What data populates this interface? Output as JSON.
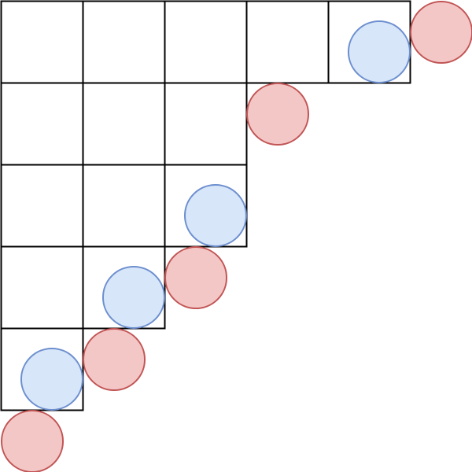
{
  "diagram": {
    "type": "staircase-grid-with-circles",
    "grid": {
      "rows": 5,
      "cols": 5,
      "row_lengths": [
        5,
        3,
        3,
        2,
        1
      ],
      "line_color": "#000000"
    },
    "colors": {
      "red_fill": "#f4c7c7",
      "red_stroke": "#c25555",
      "blue_fill": "#d7e6f8",
      "blue_stroke": "#6d8fcf"
    },
    "circles": [
      {
        "color": "red",
        "col": 0.38,
        "row": 5.38
      },
      {
        "color": "blue",
        "col": 0.62,
        "row": 4.62
      },
      {
        "color": "red",
        "col": 1.38,
        "row": 4.38
      },
      {
        "color": "blue",
        "col": 1.62,
        "row": 3.62
      },
      {
        "color": "red",
        "col": 2.38,
        "row": 3.38
      },
      {
        "color": "blue",
        "col": 2.62,
        "row": 2.62
      },
      {
        "color": "red",
        "col": 3.38,
        "row": 1.38
      },
      {
        "color": "blue",
        "col": 4.62,
        "row": 0.62
      },
      {
        "color": "red",
        "col": 5.38,
        "row": 0.38
      }
    ]
  }
}
